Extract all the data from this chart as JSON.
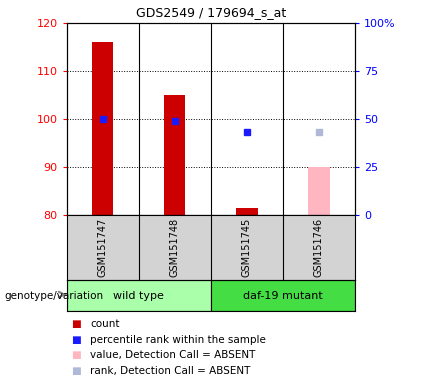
{
  "title": "GDS2549 / 179694_s_at",
  "samples": [
    "GSM151747",
    "GSM151748",
    "GSM151745",
    "GSM151746"
  ],
  "ylim_left": [
    80,
    120
  ],
  "ylim_right": [
    0,
    100
  ],
  "yticks_left": [
    80,
    90,
    100,
    110,
    120
  ],
  "yticks_right": [
    0,
    25,
    50,
    75,
    100
  ],
  "ytick_labels_right": [
    "0",
    "25",
    "50",
    "75",
    "100%"
  ],
  "bar_values": [
    116,
    105,
    81.5,
    90
  ],
  "bar_absent_flags": [
    false,
    false,
    false,
    true
  ],
  "bar_color": "#cc0000",
  "bar_absent_color": "#ffb6c1",
  "bar_gsm3_value": 81.5,
  "bar_gsm3_color": "#cc0000",
  "percentile_values": [
    50,
    49,
    43,
    43
  ],
  "percentile_absent_flags": [
    false,
    false,
    false,
    true
  ],
  "percentile_color_present": "#1a1aff",
  "percentile_color_absent": "#b0b8d8",
  "legend_items": [
    {
      "color": "#cc0000",
      "label": "count"
    },
    {
      "color": "#1a1aff",
      "label": "percentile rank within the sample"
    },
    {
      "color": "#ffb6c1",
      "label": "value, Detection Call = ABSENT"
    },
    {
      "color": "#b0b8d8",
      "label": "rank, Detection Call = ABSENT"
    }
  ],
  "xlabel_genotype": "genotype/variation",
  "group_label_1": "wild type",
  "group_label_2": "daf-19 mutant",
  "background_color": "#ffffff",
  "plot_bg_color": "#ffffff",
  "label_area_color": "#d3d3d3",
  "bar_bottom": 80,
  "group_color_1": "#aaffaa",
  "group_color_2": "#44dd44"
}
